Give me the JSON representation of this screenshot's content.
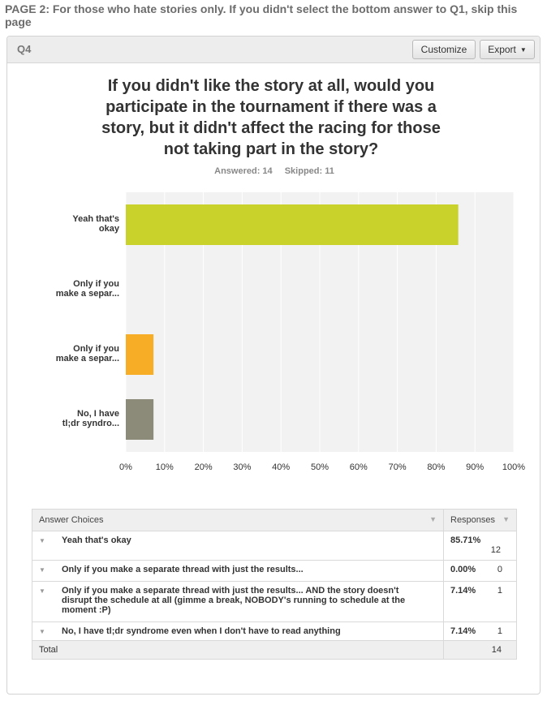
{
  "page_header": "PAGE 2: For those who hate stories only. If you didn't select the bottom answer to Q1, skip this page",
  "question": {
    "number": "Q4",
    "title": "If you didn't like the story at all, would you participate in the tournament if there was a story, but it didn't affect the racing for those not taking part in the story?",
    "answered": "Answered: 14",
    "skipped": "Skipped: 11"
  },
  "toolbar": {
    "customize_label": "Customize",
    "export_label": "Export"
  },
  "chart_data": {
    "type": "bar",
    "orientation": "horizontal",
    "categories": [
      [
        "Yeah that's",
        "okay"
      ],
      [
        "Only if you",
        "make a separ..."
      ],
      [
        "Only if you",
        "make a separ..."
      ],
      [
        "No, I have",
        "tl;dr syndro..."
      ]
    ],
    "values": [
      85.71,
      0.0,
      7.14,
      7.14
    ],
    "colors": [
      "#c8d22a",
      "#5ab3e0",
      "#f7ae26",
      "#8c8b7a"
    ],
    "xlim": [
      0,
      100
    ],
    "xticks": [
      "0%",
      "10%",
      "20%",
      "30%",
      "40%",
      "50%",
      "60%",
      "70%",
      "80%",
      "90%",
      "100%"
    ],
    "grid": true
  },
  "table": {
    "header_choice": "Answer Choices",
    "header_responses": "Responses",
    "rows": [
      {
        "choice": "Yeah that's okay",
        "percent": "85.71%",
        "count": "12"
      },
      {
        "choice": "Only if you make a separate thread with just the results...",
        "percent": "0.00%",
        "count": "0"
      },
      {
        "choice": "Only if you make a separate thread with just the results... AND the story doesn't disrupt the schedule at all (gimme a break, NOBODY's running to schedule at the moment :P)",
        "percent": "7.14%",
        "count": "1"
      },
      {
        "choice": "No, I have tl;dr syndrome even when I don't have to read anything",
        "percent": "7.14%",
        "count": "1"
      }
    ],
    "total_label": "Total",
    "total_value": "14"
  }
}
